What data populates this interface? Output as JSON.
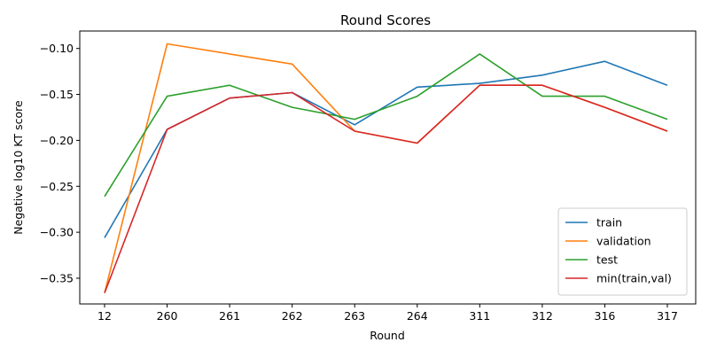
{
  "chart_data": {
    "type": "line",
    "title": "Round Scores",
    "xlabel": "Round",
    "ylabel": "Negative log10 KT score",
    "categories": [
      "12",
      "260",
      "261",
      "262",
      "263",
      "264",
      "311",
      "312",
      "316",
      "317"
    ],
    "ylim": [
      -0.378,
      -0.081
    ],
    "yticks": [
      -0.35,
      -0.3,
      -0.25,
      -0.2,
      -0.15,
      -0.1
    ],
    "ytick_labels": [
      "−0.35",
      "−0.30",
      "−0.25",
      "−0.20",
      "−0.15",
      "−0.10"
    ],
    "grid": false,
    "legend_position": "lower-right",
    "series": [
      {
        "name": "train",
        "color": "#1f77b4",
        "values": [
          -0.306,
          -0.188,
          -0.154,
          -0.148,
          -0.183,
          -0.142,
          -0.138,
          -0.129,
          -0.114,
          -0.14
        ]
      },
      {
        "name": "validation",
        "color": "#ff7f0e",
        "values": [
          -0.366,
          -0.095,
          -0.106,
          -0.117,
          -0.19,
          -0.203,
          -0.14,
          -0.14,
          -0.164,
          -0.19
        ]
      },
      {
        "name": "test",
        "color": "#2ca02c",
        "values": [
          -0.261,
          -0.152,
          -0.14,
          -0.164,
          -0.177,
          -0.152,
          -0.106,
          -0.152,
          -0.152,
          -0.177
        ]
      },
      {
        "name": "min(train,val)",
        "color": "#d62728",
        "values": [
          -0.366,
          -0.188,
          -0.154,
          -0.148,
          -0.19,
          -0.203,
          -0.14,
          -0.14,
          -0.164,
          -0.19
        ]
      }
    ]
  }
}
